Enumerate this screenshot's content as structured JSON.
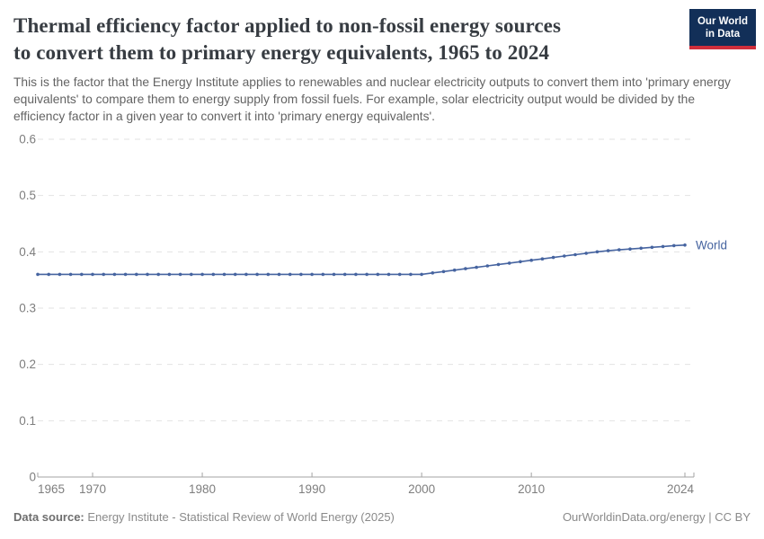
{
  "logo": {
    "line1": "Our World",
    "line2": "in Data"
  },
  "header": {
    "title_lines": [
      "Thermal efficiency factor applied to non-fossil energy sources",
      "to convert them to primary energy equivalents, 1965 to 2024"
    ],
    "subtitle": "This is the factor that the Energy Institute applies to renewables and nuclear electricity outputs to convert them into 'primary energy equivalents' to compare them to energy supply from fossil fuels. For example, solar electricity output would be divided by the efficiency factor in a given year to convert it into 'primary energy equivalents'."
  },
  "chart_data": {
    "type": "line",
    "title": "Thermal efficiency factor applied to non-fossil energy sources to convert them to primary energy equivalents, 1965 to 2024",
    "xlabel": "",
    "ylabel": "",
    "xlim": [
      1965,
      2024
    ],
    "ylim": [
      0,
      0.6
    ],
    "x_ticks": [
      1965,
      1970,
      1980,
      1990,
      2000,
      2010,
      2024
    ],
    "y_ticks": [
      0,
      0.1,
      0.2,
      0.3,
      0.4,
      0.5,
      0.6
    ],
    "grid": true,
    "legend_position": "end-of-line-label",
    "series": [
      {
        "name": "World",
        "start_year": 1965,
        "values": [
          0.36,
          0.36,
          0.36,
          0.36,
          0.36,
          0.36,
          0.36,
          0.36,
          0.36,
          0.36,
          0.36,
          0.36,
          0.36,
          0.36,
          0.36,
          0.36,
          0.36,
          0.36,
          0.36,
          0.36,
          0.36,
          0.36,
          0.36,
          0.36,
          0.36,
          0.36,
          0.36,
          0.36,
          0.36,
          0.36,
          0.36,
          0.36,
          0.36,
          0.36,
          0.36,
          0.36,
          0.3625,
          0.365,
          0.3675,
          0.37,
          0.3725,
          0.375,
          0.3775,
          0.38,
          0.3825,
          0.385,
          0.3875,
          0.39,
          0.3925,
          0.395,
          0.3975,
          0.4,
          0.402,
          0.4035,
          0.405,
          0.4065,
          0.408,
          0.4095,
          0.411,
          0.412
        ]
      }
    ],
    "colors": {
      "line": "#4664a0",
      "grid": "#e2e2e2",
      "axis": "#a3a3a3",
      "tick_label": "#7e7e7e"
    }
  },
  "footer": {
    "source_label": "Data source:",
    "source_text": " Energy Institute - Statistical Review of World Energy (2025)",
    "right_text": "OurWorldinData.org/energy | CC BY"
  }
}
